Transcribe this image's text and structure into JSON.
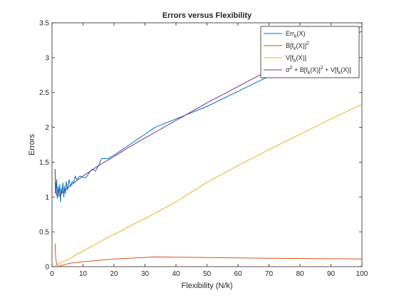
{
  "chart_data": {
    "type": "line",
    "title": "Errors versus Flexibility",
    "xlabel": "Flexibility (N/k)",
    "ylabel": "Errors",
    "xlim": [
      0,
      100
    ],
    "ylim": [
      0,
      3.5
    ],
    "xticks": [
      "0",
      "10",
      "20",
      "30",
      "40",
      "50",
      "60",
      "70",
      "80",
      "90",
      "100"
    ],
    "yticks": [
      "0",
      "0.5",
      "1",
      "1.5",
      "2",
      "2.5",
      "3",
      "3.5"
    ],
    "grid": false,
    "legend_position": "top-right",
    "series": [
      {
        "name": "Err_k(X)",
        "color": "#0072BD",
        "x": [
          1,
          1.1,
          1.2,
          1.3,
          1.5,
          1.7,
          2,
          2.2,
          2.5,
          2.7,
          3,
          3.2,
          3.5,
          3.8,
          4,
          4.3,
          4.6,
          5,
          5.5,
          6,
          6.5,
          7,
          7.5,
          8,
          9,
          10,
          11,
          12,
          13,
          14,
          15,
          16,
          17,
          18,
          20,
          25,
          33.3,
          50,
          100
        ],
        "y": [
          1.4,
          1.05,
          1.2,
          1.1,
          1.25,
          0.98,
          1.15,
          1.03,
          1.18,
          0.93,
          1.12,
          1.05,
          1.2,
          1.0,
          1.15,
          1.05,
          1.22,
          1.1,
          1.25,
          1.15,
          1.22,
          1.2,
          1.3,
          1.25,
          1.3,
          1.28,
          1.28,
          1.35,
          1.4,
          1.37,
          1.45,
          1.55,
          1.55,
          1.55,
          1.6,
          1.75,
          2.0,
          2.3,
          3.38
        ]
      },
      {
        "name": "B[f_k(X)]^2",
        "color": "#D95319",
        "x": [
          1,
          1.2,
          1.5,
          2,
          2.5,
          3,
          3.5,
          4,
          5,
          6,
          8,
          10,
          15,
          20,
          25,
          33.3,
          50,
          70,
          100
        ],
        "y": [
          0.33,
          0.12,
          0.04,
          0.0,
          0.01,
          0.02,
          0.02,
          0.03,
          0.04,
          0.05,
          0.06,
          0.07,
          0.09,
          0.11,
          0.12,
          0.14,
          0.13,
          0.12,
          0.11
        ]
      },
      {
        "name": "V[f_k(X)]",
        "color": "#EDB120",
        "x": [
          1,
          2,
          3,
          4,
          5,
          6,
          7,
          8,
          10,
          12,
          14,
          16,
          18,
          20,
          25,
          30,
          40,
          50,
          60,
          70,
          80,
          90,
          100
        ],
        "y": [
          0.01,
          0.04,
          0.06,
          0.08,
          0.1,
          0.12,
          0.15,
          0.18,
          0.22,
          0.27,
          0.32,
          0.37,
          0.42,
          0.46,
          0.58,
          0.69,
          0.93,
          1.21,
          1.45,
          1.68,
          1.9,
          2.12,
          2.33
        ]
      },
      {
        "name": "σ^2 + B[f_k(X)]^2 + V[f_k(X)]",
        "color": "#7E2F8E",
        "x": [
          1,
          1.1,
          1.3,
          1.6,
          2,
          3,
          5,
          7,
          10,
          15,
          20,
          25,
          33.3,
          50,
          70,
          100
        ],
        "y": [
          1.4,
          1.18,
          1.06,
          1.02,
          1.01,
          1.05,
          1.13,
          1.2,
          1.3,
          1.45,
          1.58,
          1.72,
          1.93,
          2.35,
          2.82,
          3.45
        ]
      }
    ]
  }
}
